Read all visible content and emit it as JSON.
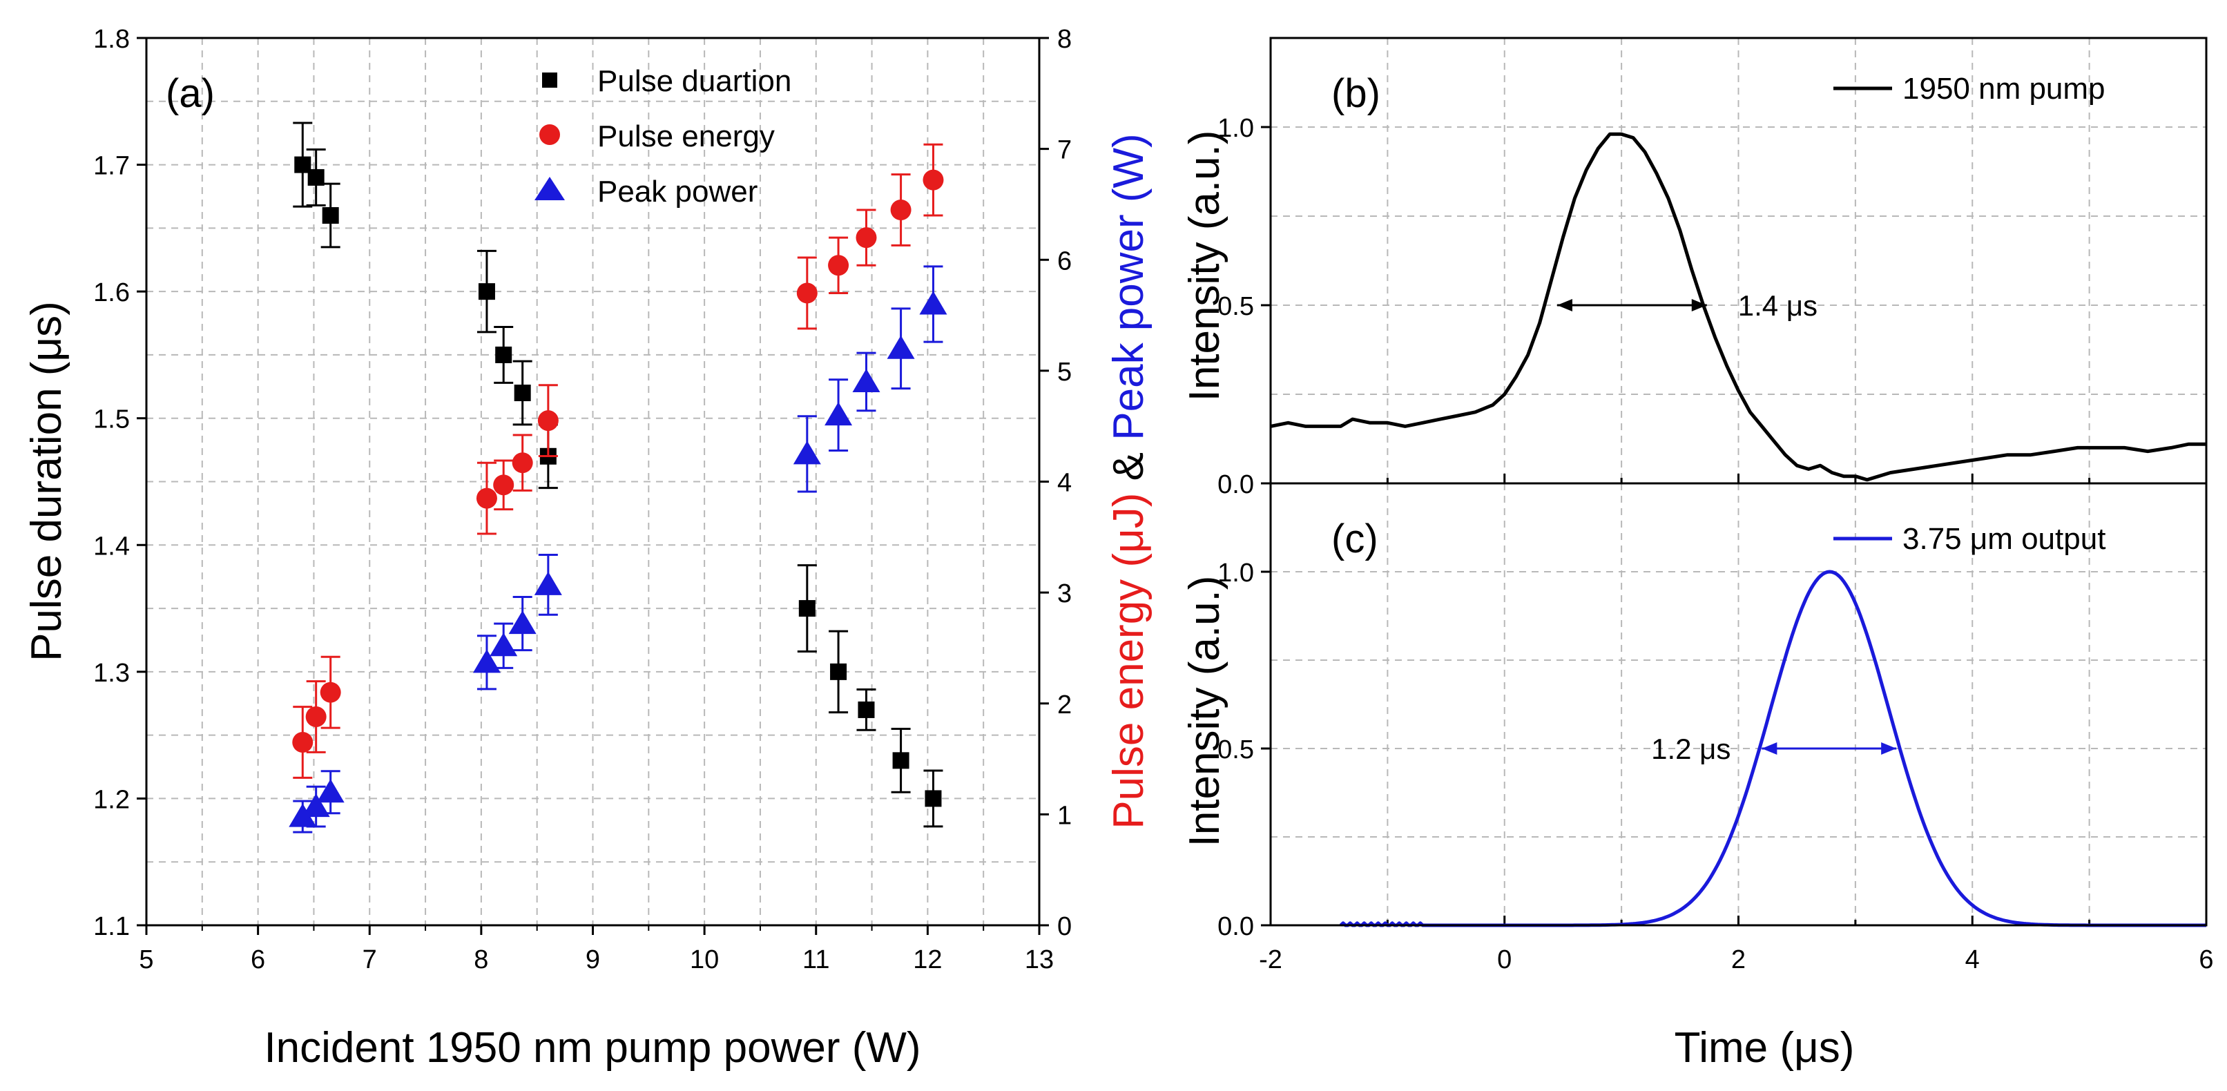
{
  "colors": {
    "black": "#000000",
    "red": "#e61c1c",
    "blue": "#1a1adb"
  },
  "chart_data": [
    {
      "panel": "(a)",
      "type": "scatter",
      "xlabel": "Incident 1950 nm pump power (W)",
      "ylabel_left": "Pulse duration (μs)",
      "ylabel_right_parts": [
        "Pulse energy (μJ)",
        " & ",
        "Peak power (W)"
      ],
      "xlim": [
        5,
        13
      ],
      "ylim_left": [
        1.1,
        1.8
      ],
      "ylim_right": [
        0,
        8
      ],
      "x_ticks": [
        "5",
        "6",
        "7",
        "8",
        "9",
        "10",
        "11",
        "12",
        "13"
      ],
      "y_left_ticks": [
        "1.1",
        "1.2",
        "1.3",
        "1.4",
        "1.5",
        "1.6",
        "1.7",
        "1.8"
      ],
      "y_right_ticks": [
        "0",
        "1",
        "2",
        "3",
        "4",
        "5",
        "6",
        "7",
        "8"
      ],
      "grid": true,
      "legend_position": "top-center",
      "series": [
        {
          "name": "Pulse duartion",
          "axis": "left",
          "marker": "square",
          "color": "#000000",
          "x": [
            6.4,
            6.52,
            6.65,
            8.05,
            8.2,
            8.37,
            8.6,
            10.92,
            11.2,
            11.45,
            11.76,
            12.05
          ],
          "y": [
            1.7,
            1.69,
            1.66,
            1.6,
            1.55,
            1.52,
            1.47,
            1.35,
            1.3,
            1.27,
            1.23,
            1.2
          ],
          "err": [
            0.033,
            0.022,
            0.025,
            0.032,
            0.022,
            0.025,
            0.025,
            0.034,
            0.032,
            0.016,
            0.025,
            0.022
          ]
        },
        {
          "name": "Pulse energy",
          "axis": "right",
          "marker": "circle",
          "color": "#e61c1c",
          "x": [
            6.4,
            6.52,
            6.65,
            8.05,
            8.2,
            8.37,
            8.6,
            10.92,
            11.2,
            11.45,
            11.76,
            12.05
          ],
          "y": [
            1.65,
            1.88,
            2.1,
            3.85,
            3.97,
            4.17,
            4.55,
            5.7,
            5.95,
            6.2,
            6.45,
            6.72
          ],
          "err": [
            0.32,
            0.32,
            0.32,
            0.32,
            0.22,
            0.25,
            0.32,
            0.32,
            0.25,
            0.25,
            0.32,
            0.32
          ]
        },
        {
          "name": "Peak power",
          "axis": "right",
          "marker": "triangle",
          "color": "#1a1adb",
          "x": [
            6.4,
            6.52,
            6.65,
            8.05,
            8.2,
            8.37,
            8.6,
            10.92,
            11.2,
            11.45,
            11.76,
            12.05
          ],
          "y": [
            0.98,
            1.07,
            1.2,
            2.37,
            2.52,
            2.72,
            3.07,
            4.25,
            4.6,
            4.9,
            5.2,
            5.6
          ],
          "err": [
            0.14,
            0.18,
            0.19,
            0.24,
            0.2,
            0.24,
            0.27,
            0.34,
            0.32,
            0.26,
            0.36,
            0.34
          ]
        }
      ]
    },
    {
      "panel": "(b)",
      "type": "line",
      "xlim": [
        -2,
        6
      ],
      "ylim": [
        0,
        1.25
      ],
      "ylabel": "Intensity (a.u.)",
      "y_ticks": [
        "0.0",
        "0.5",
        "1.0"
      ],
      "legend": "1950 nm pump",
      "annotation": "1.4 μs",
      "fwhm_from": 0.45,
      "fwhm_to": 1.73,
      "fwhm_y": 0.5,
      "series": [
        {
          "name": "1950 nm pump",
          "color": "#000000",
          "x": [
            -2,
            -1.85,
            -1.7,
            -1.55,
            -1.4,
            -1.3,
            -1.15,
            -1.0,
            -0.85,
            -0.7,
            -0.55,
            -0.4,
            -0.25,
            -0.1,
            0.0,
            0.1,
            0.2,
            0.3,
            0.4,
            0.5,
            0.6,
            0.7,
            0.8,
            0.9,
            1.0,
            1.1,
            1.2,
            1.3,
            1.4,
            1.5,
            1.6,
            1.7,
            1.8,
            1.9,
            2.0,
            2.1,
            2.2,
            2.3,
            2.4,
            2.5,
            2.6,
            2.7,
            2.8,
            2.9,
            3.0,
            3.1,
            3.3,
            3.5,
            3.7,
            3.9,
            4.1,
            4.3,
            4.5,
            4.7,
            4.9,
            5.1,
            5.3,
            5.5,
            5.7,
            5.85,
            6.0
          ],
          "y": [
            0.16,
            0.17,
            0.16,
            0.16,
            0.16,
            0.18,
            0.17,
            0.17,
            0.16,
            0.17,
            0.18,
            0.19,
            0.2,
            0.22,
            0.25,
            0.3,
            0.36,
            0.45,
            0.57,
            0.69,
            0.8,
            0.88,
            0.94,
            0.98,
            0.98,
            0.97,
            0.93,
            0.87,
            0.8,
            0.71,
            0.6,
            0.5,
            0.41,
            0.33,
            0.26,
            0.2,
            0.16,
            0.12,
            0.08,
            0.05,
            0.04,
            0.05,
            0.03,
            0.02,
            0.02,
            0.01,
            0.03,
            0.04,
            0.05,
            0.06,
            0.07,
            0.08,
            0.08,
            0.09,
            0.1,
            0.1,
            0.1,
            0.09,
            0.1,
            0.11,
            0.11
          ]
        }
      ]
    },
    {
      "panel": "(c)",
      "type": "line",
      "xlim": [
        -2,
        6
      ],
      "ylim": [
        0,
        1.25
      ],
      "ylabel": "Intensity (a.u.)",
      "xlabel": "Time (μs)",
      "x_ticks": [
        "-2",
        "0",
        "2",
        "4",
        "6"
      ],
      "y_ticks": [
        "0.0",
        "0.5",
        "1.0"
      ],
      "legend": "3.75 μm output",
      "annotation": "1.2 μs",
      "fwhm_from": 2.2,
      "fwhm_to": 3.35,
      "fwhm_y": 0.5,
      "gaussian": {
        "center": 2.78,
        "fwhm": 1.2,
        "start": -1.4,
        "noise_until": -0.7
      },
      "series": [
        {
          "name": "3.75 μm output",
          "color": "#1a1adb"
        }
      ]
    }
  ]
}
